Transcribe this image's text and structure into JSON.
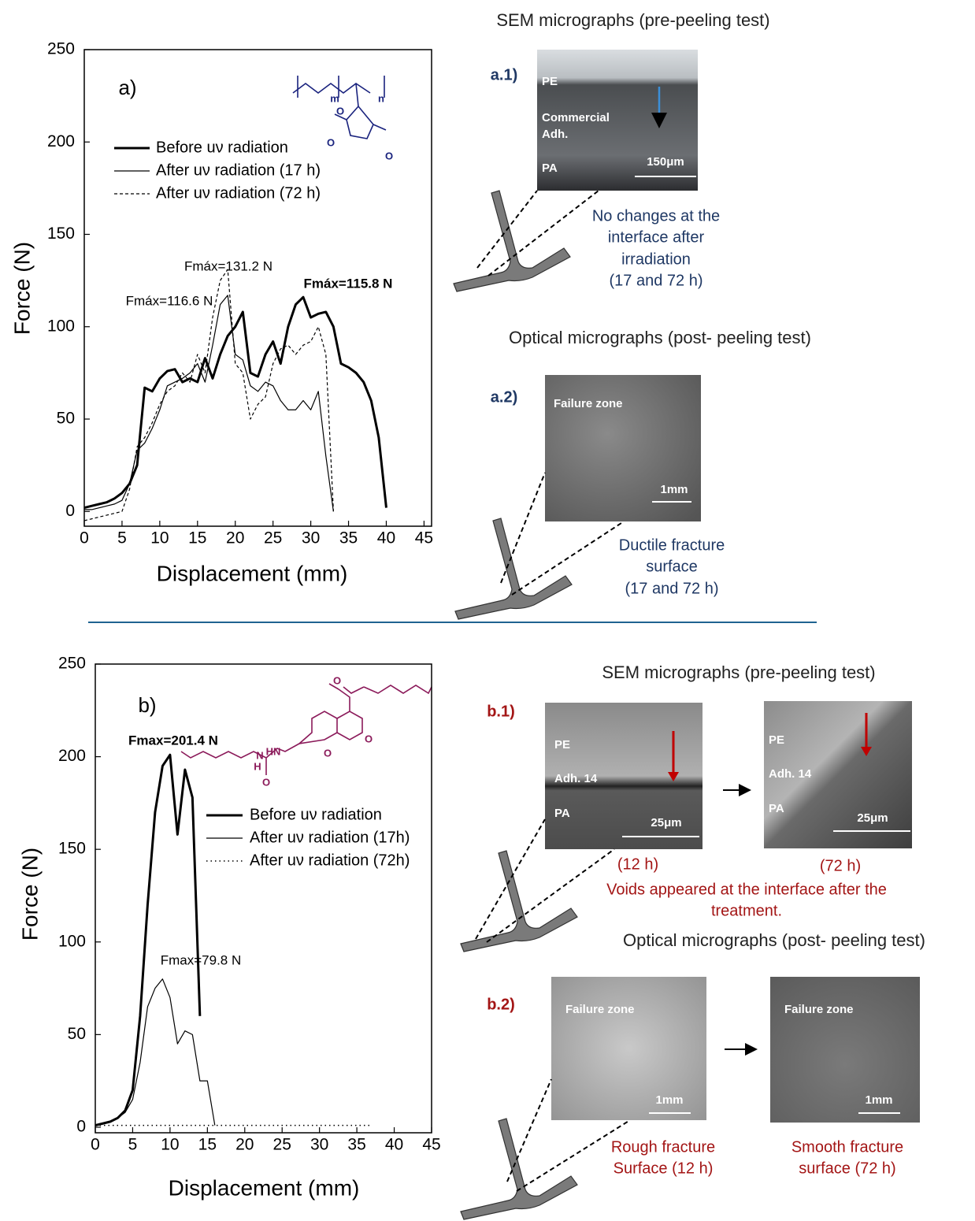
{
  "chart_data": [
    {
      "type": "line",
      "label": "a)",
      "x_label": "Displacement (mm)",
      "y_label": "Force (N)",
      "x": [
        0,
        1,
        2,
        3,
        4,
        5,
        6,
        7,
        8,
        9,
        10,
        11,
        12,
        13,
        14,
        15,
        16,
        17,
        18,
        19,
        20,
        21,
        22,
        23,
        24,
        25,
        26,
        27,
        28,
        29,
        30,
        31,
        32,
        33,
        34,
        35,
        36,
        37,
        38,
        39,
        40
      ],
      "series": [
        {
          "name": "Before uν radiation",
          "color": "#000000",
          "line_style": "thick",
          "values": [
            2,
            3,
            4,
            5,
            7,
            10,
            15,
            25,
            67,
            65,
            72,
            76,
            77,
            70,
            72,
            70,
            83,
            72,
            85,
            95,
            100,
            108,
            75,
            73,
            85,
            92,
            80,
            100,
            112,
            116,
            105,
            107,
            108,
            100,
            80,
            78,
            75,
            70,
            60,
            40,
            2
          ]
        },
        {
          "name": "After uν radiation (17 h)",
          "color": "#000000",
          "line_style": "thin",
          "values": [
            1,
            1,
            2,
            3,
            4,
            6,
            15,
            33,
            37,
            45,
            55,
            68,
            70,
            72,
            75,
            80,
            70,
            90,
            112,
            117,
            85,
            82,
            68,
            65,
            70,
            68,
            60,
            55,
            55,
            60,
            55,
            65,
            30,
            0,
            null,
            null,
            null,
            null,
            null,
            null,
            null
          ]
        },
        {
          "name": "After uν radiation (72 h)",
          "color": "#000000",
          "line_style": "dashed",
          "values": [
            -5,
            -4,
            -3,
            -2,
            -1,
            0,
            12,
            35,
            40,
            48,
            58,
            65,
            68,
            75,
            70,
            85,
            75,
            105,
            125,
            131,
            80,
            75,
            50,
            58,
            62,
            80,
            88,
            90,
            85,
            90,
            92,
            100,
            85,
            0,
            null,
            null,
            null,
            null,
            null,
            null,
            null
          ]
        }
      ],
      "annotations": [
        {
          "text": "Fmáx=131.2 N",
          "bold": false
        },
        {
          "text": "Fmáx=116.6 N",
          "bold": false
        },
        {
          "text": "Fmáx=115.8 N",
          "bold": true
        }
      ],
      "structure_labels": [
        "m",
        "n",
        "O",
        "O",
        "O"
      ],
      "structure_color": "#1a237e",
      "xlim": [
        0,
        46
      ],
      "ylim": [
        -8,
        250
      ],
      "xticks": [
        0,
        5,
        10,
        15,
        20,
        25,
        30,
        35,
        40,
        45
      ],
      "yticks": [
        0,
        50,
        100,
        150,
        200,
        250
      ],
      "legend": "upper left"
    },
    {
      "type": "line",
      "label": "b)",
      "x_label": "Displacement (mm)",
      "y_label": "Force (N)",
      "x": [
        0,
        1,
        2,
        3,
        4,
        5,
        6,
        7,
        8,
        9,
        10,
        11,
        12,
        13,
        14,
        15,
        16,
        17,
        18,
        19,
        20,
        21,
        22,
        23,
        24,
        25,
        26,
        27,
        28,
        29,
        30,
        31,
        32,
        33,
        34,
        35,
        36,
        37
      ],
      "series": [
        {
          "name": "Before uν radiation",
          "color": "#000000",
          "line_style": "thick",
          "values": [
            1,
            2,
            3,
            5,
            9,
            20,
            60,
            120,
            170,
            195,
            201,
            158,
            193,
            178,
            60,
            null,
            null,
            null,
            null,
            null,
            null,
            null,
            null,
            null,
            null,
            null,
            null,
            null,
            null,
            null,
            null,
            null,
            null,
            null,
            null,
            null,
            null,
            null
          ]
        },
        {
          "name": "After uν radiation (17h)",
          "color": "#000000",
          "line_style": "thin",
          "values": [
            1,
            2,
            3,
            5,
            8,
            15,
            35,
            65,
            75,
            80,
            70,
            45,
            52,
            50,
            25,
            25,
            1,
            null,
            null,
            null,
            null,
            null,
            null,
            null,
            null,
            null,
            null,
            null,
            null,
            null,
            null,
            null,
            null,
            null,
            null,
            null,
            null,
            null
          ]
        },
        {
          "name": "After uν radiation (72h)",
          "color": "#000000",
          "line_style": "dotted",
          "values": [
            1,
            1,
            1,
            1,
            1,
            1,
            1,
            1,
            1,
            1,
            1,
            1,
            1,
            1,
            1,
            1,
            1,
            1,
            1,
            1,
            1,
            1,
            1,
            1,
            1,
            1,
            1,
            1,
            1,
            1,
            1,
            1,
            1,
            1,
            1,
            1,
            1,
            1
          ]
        }
      ],
      "annotations": [
        {
          "text": "Fmax=201.4 N",
          "bold": true
        },
        {
          "text": "Fmax=79.8 N",
          "bold": false
        }
      ],
      "structure_labels": [
        "O",
        "O",
        "O",
        "HN",
        "N",
        "H",
        "O"
      ],
      "structure_color": "#8b1a5a",
      "xlim": [
        0,
        45
      ],
      "ylim": [
        -3,
        250
      ],
      "xticks": [
        0,
        5,
        10,
        15,
        20,
        25,
        30,
        35,
        40,
        45
      ],
      "yticks": [
        0,
        50,
        100,
        150,
        200,
        250
      ],
      "legend": "upper left"
    }
  ],
  "panel_a": {
    "sem_title": "SEM micrographs (pre-peeling test)",
    "sem_tag": "a.1)",
    "sem_labels": [
      "PE",
      "Commercial",
      "Adh.",
      "PA",
      "150μm"
    ],
    "sem_note": [
      "No changes at the",
      "interface after",
      "irradiation",
      "(17 and 72 h)"
    ],
    "optical_title": "Optical micrographs (post- peeling test)",
    "optical_tag": "a.2)",
    "optical_labels": [
      "Failure zone",
      "1mm"
    ],
    "optical_note": [
      "Ductile fracture",
      "surface",
      "(17 and 72 h)"
    ]
  },
  "panel_b": {
    "sem_title": "SEM micrographs (pre-peeling test)",
    "sem_tag": "b.1)",
    "sem_labels_1": [
      "PE",
      "Adh. 14",
      "PA",
      "25μm"
    ],
    "sem_labels_2": [
      "PE",
      "Adh. 14",
      "PA",
      "25μm"
    ],
    "sem_captions": [
      "(12 h)",
      "(72 h)"
    ],
    "sem_note": [
      "Voids appeared at the interface after the",
      "treatment."
    ],
    "optical_title": "Optical micrographs (post- peeling test)",
    "optical_tag": "b.2)",
    "optical_labels_1": [
      "Failure zone",
      "1mm"
    ],
    "optical_labels_2": [
      "Failure zone",
      "1mm"
    ],
    "optical_note_1": [
      "Rough fracture",
      "Surface (12 h)"
    ],
    "optical_note_2": [
      "Smooth fracture",
      "surface (72 h)"
    ]
  }
}
